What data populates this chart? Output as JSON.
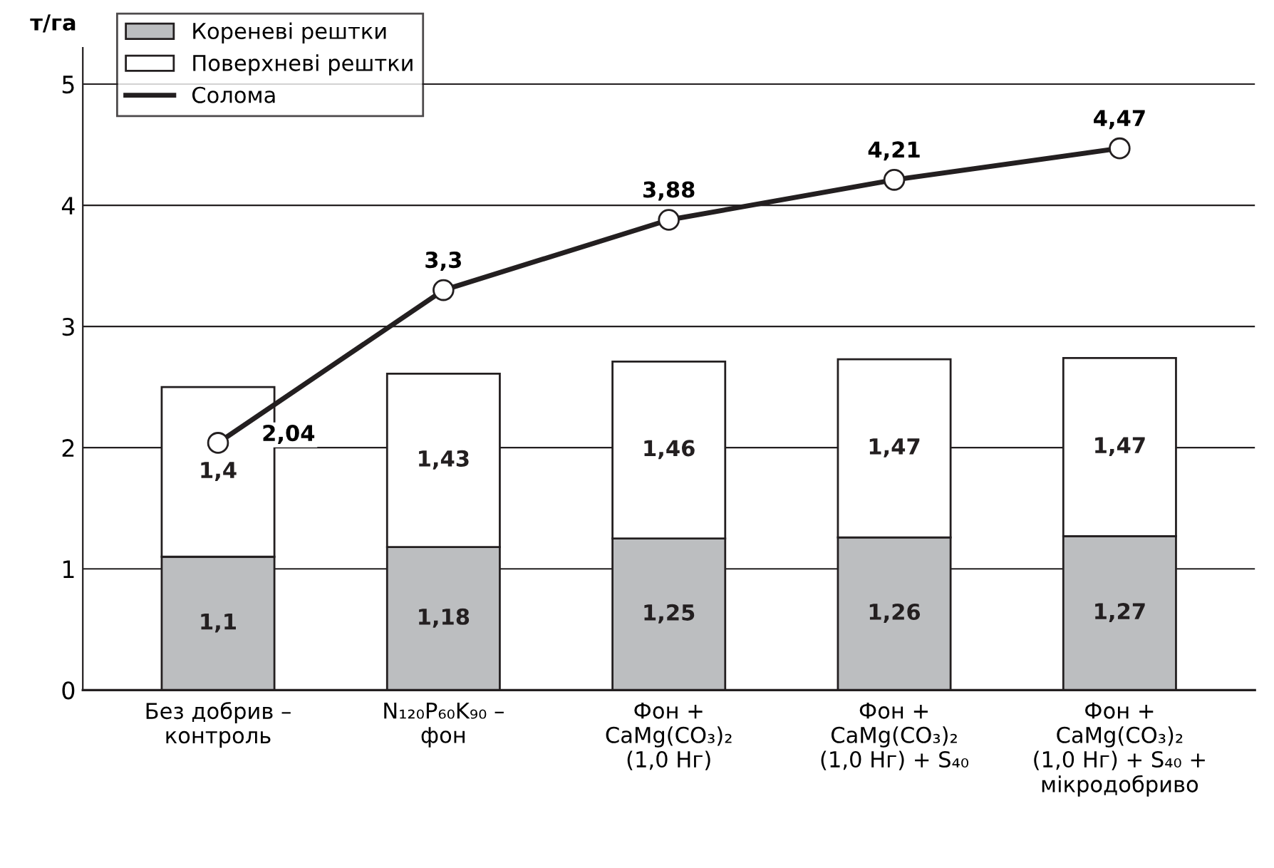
{
  "chart_data": {
    "type": "bar",
    "stacked": true,
    "ylabel": "т/га",
    "categories": [
      "Без добрив –\nконтроль",
      "N₁₂₀P₆₀K₉₀ –\nфон",
      "Фон +\nCaMg(CO₃)₂\n(1,0 Нг)",
      "Фон +\nCaMg(CO₃)₂\n(1,0 Нг) + S₄₀",
      "Фон +\nCaMg(CO₃)₂\n(1,0 Нг) + S₄₀ +\nмікродобриво"
    ],
    "series": [
      {
        "name": "Кореневі рештки",
        "color": "#bcbec0",
        "values": [
          1.1,
          1.18,
          1.25,
          1.26,
          1.27
        ],
        "value_labels": [
          "1,1",
          "1,18",
          "1,25",
          "1,26",
          "1,27"
        ]
      },
      {
        "name": "Поверхневі рештки",
        "color": "#ffffff",
        "values": [
          1.4,
          1.43,
          1.46,
          1.47,
          1.47
        ],
        "value_labels": [
          "1,4",
          "1,43",
          "1,46",
          "1,47",
          "1,47"
        ]
      },
      {
        "name": "Солома",
        "type": "line",
        "color": "#231f20",
        "marker": "circle",
        "values": [
          2.04,
          3.3,
          3.88,
          4.21,
          4.47
        ],
        "value_labels": [
          "2,04",
          "3,3",
          "3,88",
          "4,21",
          "4,47"
        ]
      }
    ],
    "ylim": [
      0,
      5.3
    ],
    "yticks": [
      0,
      1,
      2,
      3,
      4,
      5
    ],
    "grid": "y",
    "legend": "top left"
  }
}
